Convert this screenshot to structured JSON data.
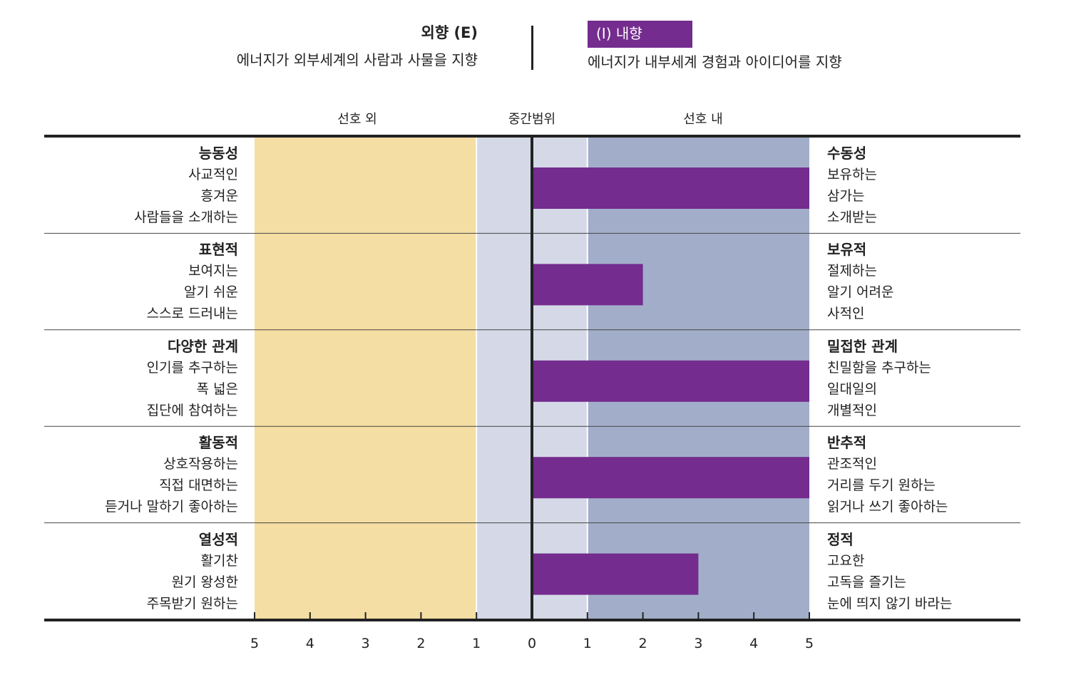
{
  "header": {
    "left_title": "외향 (E)",
    "left_desc": "에너지가 외부세계의 사람과 사물을 지향",
    "right_title": "(I) 내향",
    "right_desc": "에너지가 내부세계 경험과 아이디어를 지향"
  },
  "zones": {
    "left": "선호 외",
    "middle": "중간범위",
    "right": "선호 내"
  },
  "colors": {
    "left_zone": "#f5dea3",
    "middle_zone": "#d5d9e7",
    "right_zone": "#a2aec9",
    "bar": "#742c8e",
    "axis": "#222222",
    "badge": "#742c8e"
  },
  "chart_data": {
    "type": "bar",
    "orientation": "horizontal",
    "x_ticks": [
      "5",
      "4",
      "3",
      "2",
      "1",
      "0",
      "1",
      "2",
      "3",
      "4",
      "5"
    ],
    "xlim": [
      -5,
      5
    ],
    "categories": [
      {
        "left": {
          "title": "능동성",
          "items": [
            "사교적인",
            "흥겨운",
            "사람들을 소개하는"
          ]
        },
        "right": {
          "title": "수동성",
          "items": [
            "보유하는",
            "삼가는",
            "소개받는"
          ]
        },
        "value": 5
      },
      {
        "left": {
          "title": "표현적",
          "items": [
            "보여지는",
            "알기 쉬운",
            "스스로 드러내는"
          ]
        },
        "right": {
          "title": "보유적",
          "items": [
            "절제하는",
            "알기 어려운",
            "사적인"
          ]
        },
        "value": 2
      },
      {
        "left": {
          "title": "다양한 관계",
          "items": [
            "인기를 추구하는",
            "폭 넓은",
            "집단에 참여하는"
          ]
        },
        "right": {
          "title": "밀접한 관계",
          "items": [
            "친밀함을 추구하는",
            "일대일의",
            "개별적인"
          ]
        },
        "value": 5
      },
      {
        "left": {
          "title": "활동적",
          "items": [
            "상호작용하는",
            "직접 대면하는",
            "듣거나 말하기 좋아하는"
          ]
        },
        "right": {
          "title": "반추적",
          "items": [
            "관조적인",
            "거리를 두기 원하는",
            "읽거나 쓰기 좋아하는"
          ]
        },
        "value": 5
      },
      {
        "left": {
          "title": "열성적",
          "items": [
            "활기찬",
            "원기 왕성한",
            "주목받기 원하는"
          ]
        },
        "right": {
          "title": "정적",
          "items": [
            "고요한",
            "고독을 즐기는",
            "눈에 띄지 않기 바라는"
          ]
        },
        "value": 3
      }
    ],
    "middle_range": [
      -1,
      1
    ],
    "grid": false
  }
}
